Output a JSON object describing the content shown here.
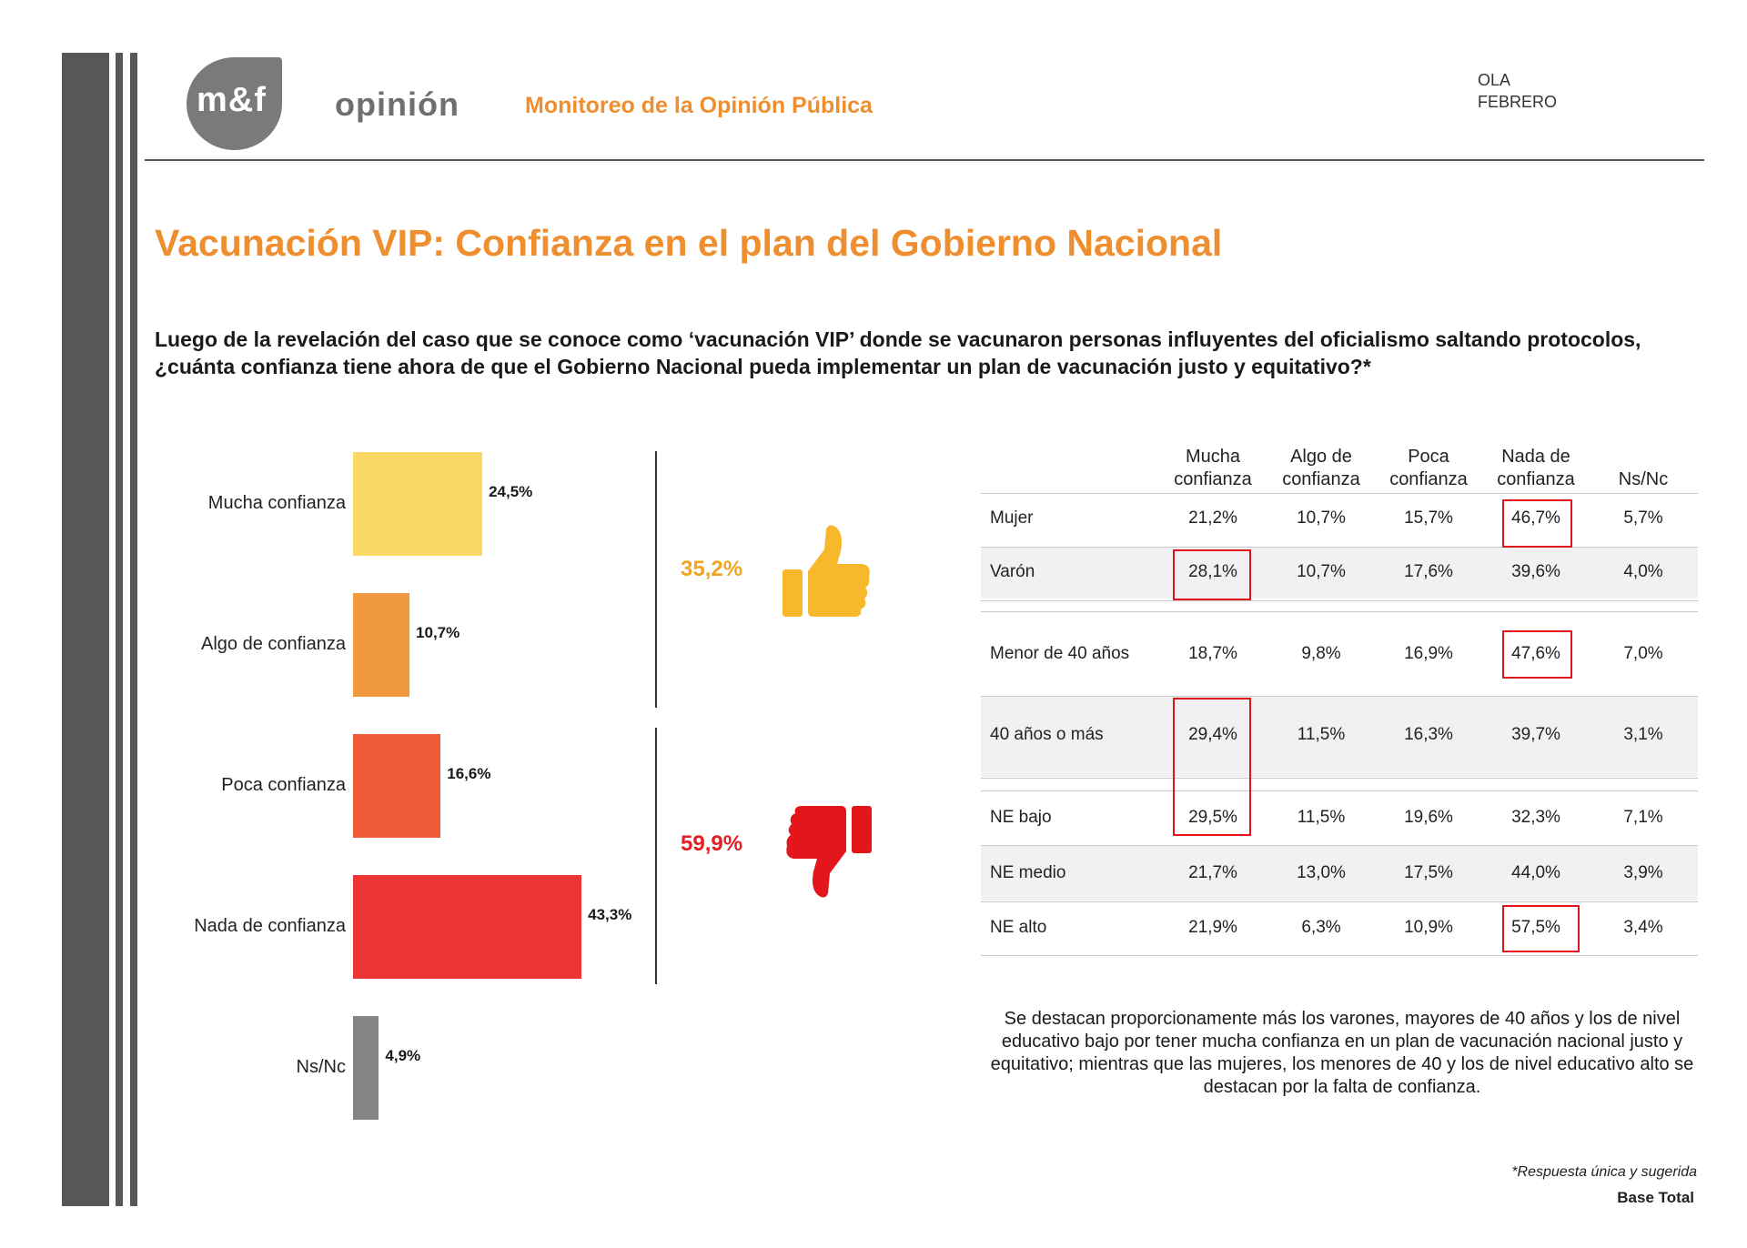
{
  "header": {
    "logo_text": "m&f",
    "brand": "opinión",
    "title": "Monitoreo de la Opinión Pública",
    "ola_line1": "OLA",
    "ola_line2": "FEBRERO"
  },
  "main_title": "Vacunación VIP: Confianza en el plan del Gobierno Nacional",
  "question": "Luego de la revelación del caso que se conoce como ‘vacunación VIP’ donde se vacunaron personas influyentes del oficialismo saltando protocolos, ¿cuánta confianza tiene ahora de que el Gobierno Nacional pueda implementar un plan de vacunación justo y equitativo?*",
  "chart_data": {
    "type": "bar",
    "orientation": "horizontal",
    "categories": [
      "Mucha confianza",
      "Algo de confianza",
      "Poca confianza",
      "Nada de confianza",
      "Ns/Nc"
    ],
    "values": [
      24.5,
      10.7,
      16.6,
      43.3,
      4.9
    ],
    "value_labels": [
      "24,5%",
      "10,7%",
      "16,6%",
      "43,3%",
      "4,9%"
    ],
    "colors": [
      "#fbd966",
      "#f0993e",
      "#ef5a3a",
      "#ee3535",
      "#858585"
    ],
    "unit": "%",
    "grid": false,
    "groups": [
      {
        "label": "35,2%",
        "color": "#f3a51e",
        "icon": "thumbs-up-icon",
        "icon_color": "#f7b92b"
      },
      {
        "label": "59,9%",
        "color": "#e31d24",
        "icon": "thumbs-down-icon",
        "icon_color": "#e3161c"
      }
    ]
  },
  "table": {
    "headers": [
      {
        "line1": "Mucha",
        "line2": "confianza"
      },
      {
        "line1": "Algo de",
        "line2": "confianza"
      },
      {
        "line1": "Poca",
        "line2": "confianza"
      },
      {
        "line1": "Nada de",
        "line2": "confianza"
      },
      {
        "line1": "",
        "line2": "Ns/Nc"
      }
    ],
    "rows": [
      {
        "label": "Mujer",
        "values": [
          "21,2%",
          "10,7%",
          "15,7%",
          "46,7%",
          "5,7%"
        ]
      },
      {
        "label": "Varón",
        "values": [
          "28,1%",
          "10,7%",
          "17,6%",
          "39,6%",
          "4,0%"
        ]
      },
      {
        "label": "Menor de 40 años",
        "values": [
          "18,7%",
          "9,8%",
          "16,9%",
          "47,6%",
          "7,0%"
        ]
      },
      {
        "label": "40 años o más",
        "values": [
          "29,4%",
          "11,5%",
          "16,3%",
          "39,7%",
          "3,1%"
        ]
      },
      {
        "label": "NE bajo",
        "values": [
          "29,5%",
          "11,5%",
          "19,6%",
          "32,3%",
          "7,1%"
        ]
      },
      {
        "label": "NE medio",
        "values": [
          "21,7%",
          "13,0%",
          "17,5%",
          "44,0%",
          "3,9%"
        ]
      },
      {
        "label": "NE alto",
        "values": [
          "21,9%",
          "6,3%",
          "10,9%",
          "57,5%",
          "3,4%"
        ]
      }
    ],
    "highlight_color": "#e0151c"
  },
  "note": "Se destacan proporcionamente más los varones, mayores de 40 años y los de nivel educativo bajo por tener mucha confianza en un plan de vacunación nacional justo y equitativo; mientras que las mujeres, los menores de 40 y los de nivel educativo alto se destacan por la falta de confianza.",
  "footnote": "*Respuesta única y sugerida",
  "base": "Base Total"
}
